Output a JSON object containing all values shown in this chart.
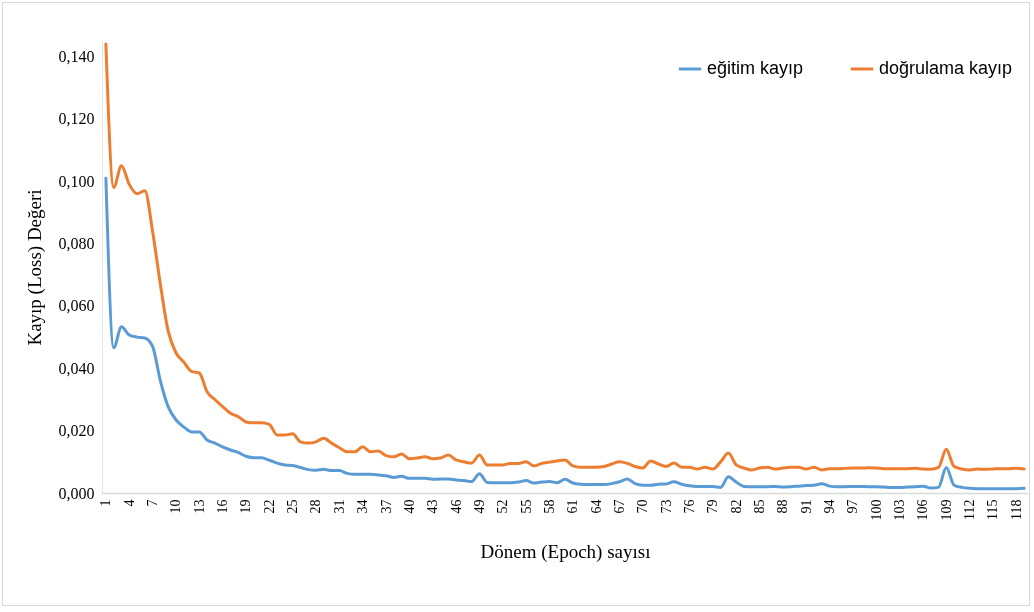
{
  "chart_data": {
    "type": "line",
    "xlabel": "Dönem (Epoch) sayısı",
    "ylabel": "Kayıp (Loss) Değeri",
    "categories": [
      "1",
      null,
      null,
      "4",
      null,
      null,
      "7",
      null,
      null,
      "10",
      null,
      null,
      "13",
      null,
      null,
      "16",
      null,
      null,
      "19",
      null,
      null,
      "22",
      null,
      null,
      "25",
      null,
      null,
      "28",
      null,
      null,
      "31",
      null,
      null,
      "34",
      null,
      null,
      "37",
      null,
      null,
      "40",
      null,
      null,
      "43",
      null,
      null,
      "46",
      null,
      null,
      "49",
      null,
      null,
      "52",
      null,
      null,
      "55",
      null,
      null,
      "58",
      null,
      null,
      "61",
      null,
      null,
      "64",
      null,
      null,
      "67",
      null,
      null,
      "70",
      null,
      null,
      "73",
      null,
      null,
      "76",
      null,
      null,
      "79",
      null,
      null,
      "82",
      null,
      null,
      "85",
      null,
      null,
      "88",
      null,
      null,
      "91",
      null,
      null,
      "94",
      null,
      null,
      "97",
      null,
      null,
      "100",
      null,
      null,
      "103",
      null,
      null,
      "106",
      null,
      null,
      "109",
      null,
      null,
      "112",
      null,
      null,
      "115",
      null,
      null,
      "118",
      null
    ],
    "series": [
      {
        "name": "eğitim kayıp",
        "color": "#5b9bd5",
        "values": [
          0.101,
          0.0466,
          0.0533,
          0.0507,
          0.05,
          0.0497,
          0.047,
          0.036,
          0.0277,
          0.0235,
          0.0212,
          0.0196,
          0.0196,
          0.017,
          0.016,
          0.0148,
          0.0138,
          0.013,
          0.0118,
          0.0113,
          0.0113,
          0.0105,
          0.0096,
          0.009,
          0.0088,
          0.0082,
          0.0075,
          0.0073,
          0.0076,
          0.0072,
          0.0072,
          0.0063,
          0.006,
          0.006,
          0.006,
          0.0058,
          0.0055,
          0.005,
          0.0054,
          0.0047,
          0.0047,
          0.0047,
          0.0044,
          0.0045,
          0.0045,
          0.0042,
          0.004,
          0.0037,
          0.0062,
          0.0034,
          0.0033,
          0.0033,
          0.0033,
          0.0035,
          0.004,
          0.0032,
          0.0035,
          0.0037,
          0.0033,
          0.0044,
          0.0032,
          0.0028,
          0.0027,
          0.0027,
          0.0027,
          0.003,
          0.0036,
          0.0045,
          0.003,
          0.0025,
          0.0025,
          0.0028,
          0.0029,
          0.0036,
          0.0028,
          0.0023,
          0.0021,
          0.0021,
          0.0021,
          0.0018,
          0.0052,
          0.0035,
          0.0021,
          0.002,
          0.002,
          0.002,
          0.0021,
          0.0019,
          0.002,
          0.0022,
          0.0024,
          0.0025,
          0.003,
          0.0022,
          0.002,
          0.002,
          0.0021,
          0.0021,
          0.002,
          0.002,
          0.0019,
          0.0018,
          0.0018,
          0.0019,
          0.002,
          0.0022,
          0.0016,
          0.0018,
          0.0082,
          0.0025,
          0.0018,
          0.0015,
          0.0014,
          0.0014,
          0.0014,
          0.0014,
          0.0014,
          0.0014,
          0.0015
        ]
      },
      {
        "name": "doğrulama kayıp",
        "color": "#ed7d31",
        "values": [
          0.144,
          0.098,
          0.105,
          0.099,
          0.096,
          0.097,
          0.084,
          0.067,
          0.052,
          0.045,
          0.042,
          0.039,
          0.0385,
          0.0325,
          0.03,
          0.0277,
          0.0256,
          0.0245,
          0.0228,
          0.0225,
          0.0225,
          0.022,
          0.0186,
          0.0186,
          0.019,
          0.0164,
          0.016,
          0.0164,
          0.0176,
          0.016,
          0.0145,
          0.0132,
          0.0132,
          0.0148,
          0.0132,
          0.0135,
          0.012,
          0.0116,
          0.0125,
          0.011,
          0.0112,
          0.0116,
          0.011,
          0.0112,
          0.0122,
          0.0106,
          0.01,
          0.0096,
          0.0122,
          0.009,
          0.009,
          0.009,
          0.0095,
          0.0095,
          0.01,
          0.0087,
          0.0095,
          0.0099,
          0.0103,
          0.0106,
          0.0087,
          0.0083,
          0.0083,
          0.0083,
          0.0085,
          0.0093,
          0.01,
          0.0095,
          0.0085,
          0.008,
          0.0103,
          0.0093,
          0.0085,
          0.0096,
          0.0083,
          0.0083,
          0.0077,
          0.0083,
          0.0077,
          0.01,
          0.0128,
          0.009,
          0.008,
          0.0074,
          0.008,
          0.0083,
          0.0077,
          0.008,
          0.0083,
          0.0083,
          0.0077,
          0.0083,
          0.0074,
          0.0078,
          0.0078,
          0.0079,
          0.008,
          0.008,
          0.0081,
          0.008,
          0.0078,
          0.0078,
          0.0078,
          0.0078,
          0.0079,
          0.0077,
          0.0076,
          0.0082,
          0.014,
          0.0085,
          0.0077,
          0.0074,
          0.0077,
          0.0076,
          0.0077,
          0.0078,
          0.0078,
          0.0079,
          0.0077
        ]
      }
    ],
    "ylim": [
      0,
      0.145
    ],
    "yticks": [
      {
        "value": 0,
        "label": "0,000"
      },
      {
        "value": 0.02,
        "label": "0,020"
      },
      {
        "value": 0.04,
        "label": "0,040"
      },
      {
        "value": 0.06,
        "label": "0,060"
      },
      {
        "value": 0.08,
        "label": "0,080"
      },
      {
        "value": 0.1,
        "label": "0,100"
      },
      {
        "value": 0.12,
        "label": "0,120"
      },
      {
        "value": 0.14,
        "label": "0,140"
      }
    ],
    "grid": false,
    "legend": "top right",
    "marker": "none",
    "line_style": "solid"
  }
}
